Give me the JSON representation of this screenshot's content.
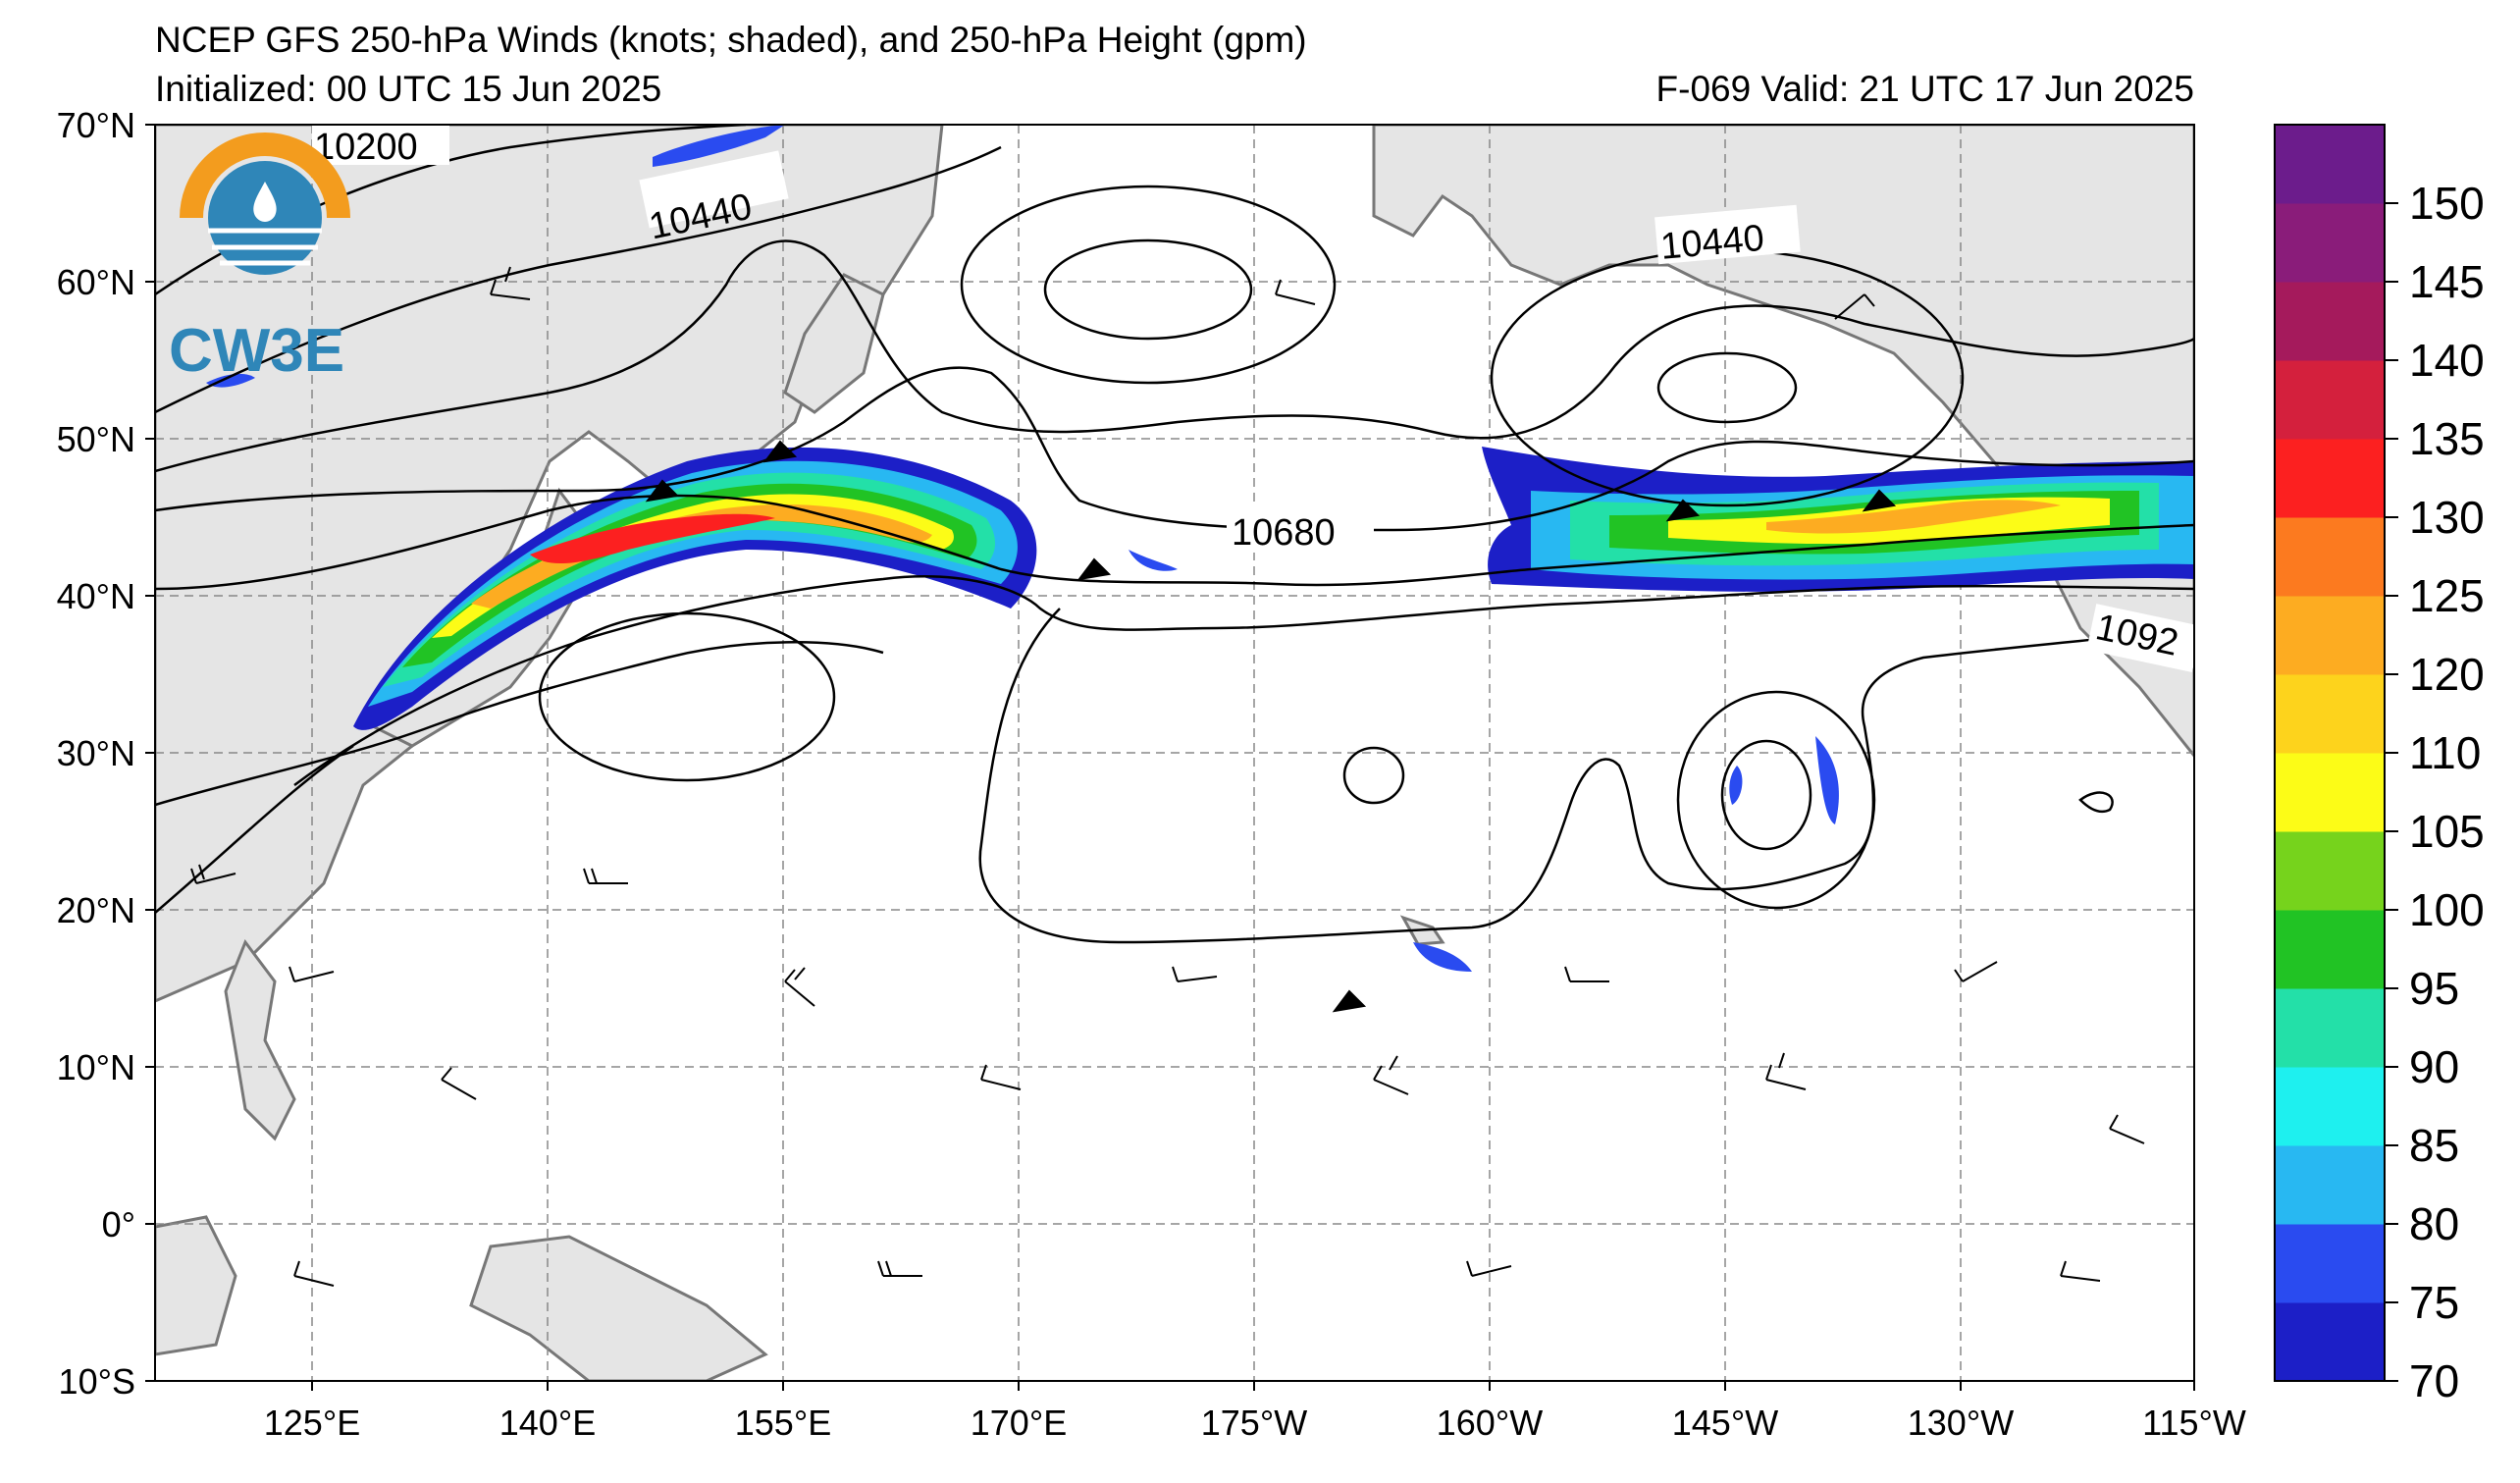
{
  "header": {
    "title": "NCEP GFS 250-hPa Winds (knots; shaded), and 250-hPa Height (gpm)",
    "initialized": "Initialized: 00 UTC 15 Jun 2025",
    "valid": "F-069  Valid: 21 UTC 17 Jun 2025"
  },
  "logo": {
    "text": "CW3E",
    "colors": {
      "orange": "#f39c1e",
      "blue": "#2f86b8"
    }
  },
  "axes": {
    "lat_labels": [
      "70°N",
      "60°N",
      "50°N",
      "40°N",
      "30°N",
      "20°N",
      "10°N",
      "0°",
      "10°S"
    ],
    "lon_labels": [
      "125°E",
      "140°E",
      "155°E",
      "170°E",
      "175°W",
      "160°W",
      "145°W",
      "130°W",
      "115°W"
    ]
  },
  "contour_labels": [
    "10200",
    "10440",
    "10440",
    "10680",
    "1092"
  ],
  "colorbar": {
    "ticks": [
      "70",
      "75",
      "80",
      "85",
      "90",
      "95",
      "100",
      "105",
      "110",
      "120",
      "125",
      "130",
      "135",
      "140",
      "145",
      "150"
    ],
    "colors": [
      "#1c1fc7",
      "#2a4bf0",
      "#28b8f2",
      "#1ef0ef",
      "#23e0a8",
      "#21c324",
      "#76d31c",
      "#fcfc17",
      "#fdd31c",
      "#fdac21",
      "#fc7a1f",
      "#fc2020",
      "#d4203d",
      "#a51a5c",
      "#8a1c7a",
      "#6c1c8c"
    ]
  },
  "map_colors": {
    "land": "#e5e5e5",
    "coast": "#777777",
    "grid": "#888888",
    "contour": "#000000"
  }
}
